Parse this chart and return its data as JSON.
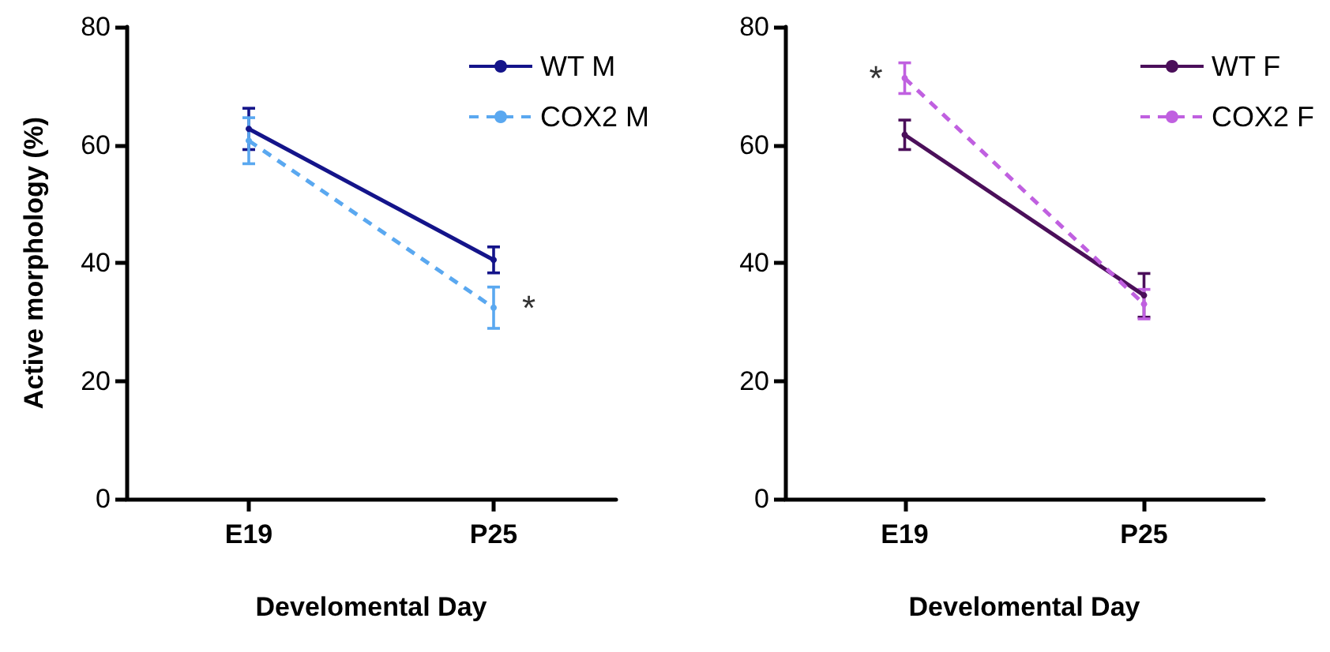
{
  "chart_data": [
    {
      "type": "line",
      "ylabel": "Active morphology (%)",
      "xlabel": "Develomental Day",
      "categories": [
        "E19",
        "P25"
      ],
      "ylim": [
        0,
        80
      ],
      "yticks": [
        0,
        20,
        40,
        60,
        80
      ],
      "grid": false,
      "legend": "top right",
      "marker": "circle",
      "series": [
        {
          "name": "WT M",
          "color": "#14148a",
          "line_style": "solid",
          "values": [
            62.7,
            40.5
          ],
          "errors": [
            3.5,
            2.2
          ]
        },
        {
          "name": "COX2 M",
          "color": "#5aa8f0",
          "line_style": "dashed",
          "values": [
            60.7,
            32.4
          ],
          "errors": [
            3.9,
            3.5
          ]
        }
      ],
      "annotations": [
        {
          "text": "*",
          "x": "P25",
          "y": 32.4
        }
      ]
    },
    {
      "type": "line",
      "xlabel": "Develomental Day",
      "categories": [
        "E19",
        "P25"
      ],
      "ylim": [
        0,
        80
      ],
      "yticks": [
        0,
        20,
        40,
        60,
        80
      ],
      "grid": false,
      "legend": "top right",
      "marker": "circle",
      "series": [
        {
          "name": "WT F",
          "color": "#4b0f5a",
          "line_style": "solid",
          "values": [
            61.7,
            34.5
          ],
          "errors": [
            2.5,
            3.7
          ]
        },
        {
          "name": "COX2 F",
          "color": "#c060e0",
          "line_style": "dashed",
          "values": [
            71.3,
            33
          ],
          "errors": [
            2.6,
            2.5
          ]
        }
      ],
      "annotations": [
        {
          "text": "*",
          "x": "E19",
          "y": 71.3
        }
      ]
    }
  ]
}
